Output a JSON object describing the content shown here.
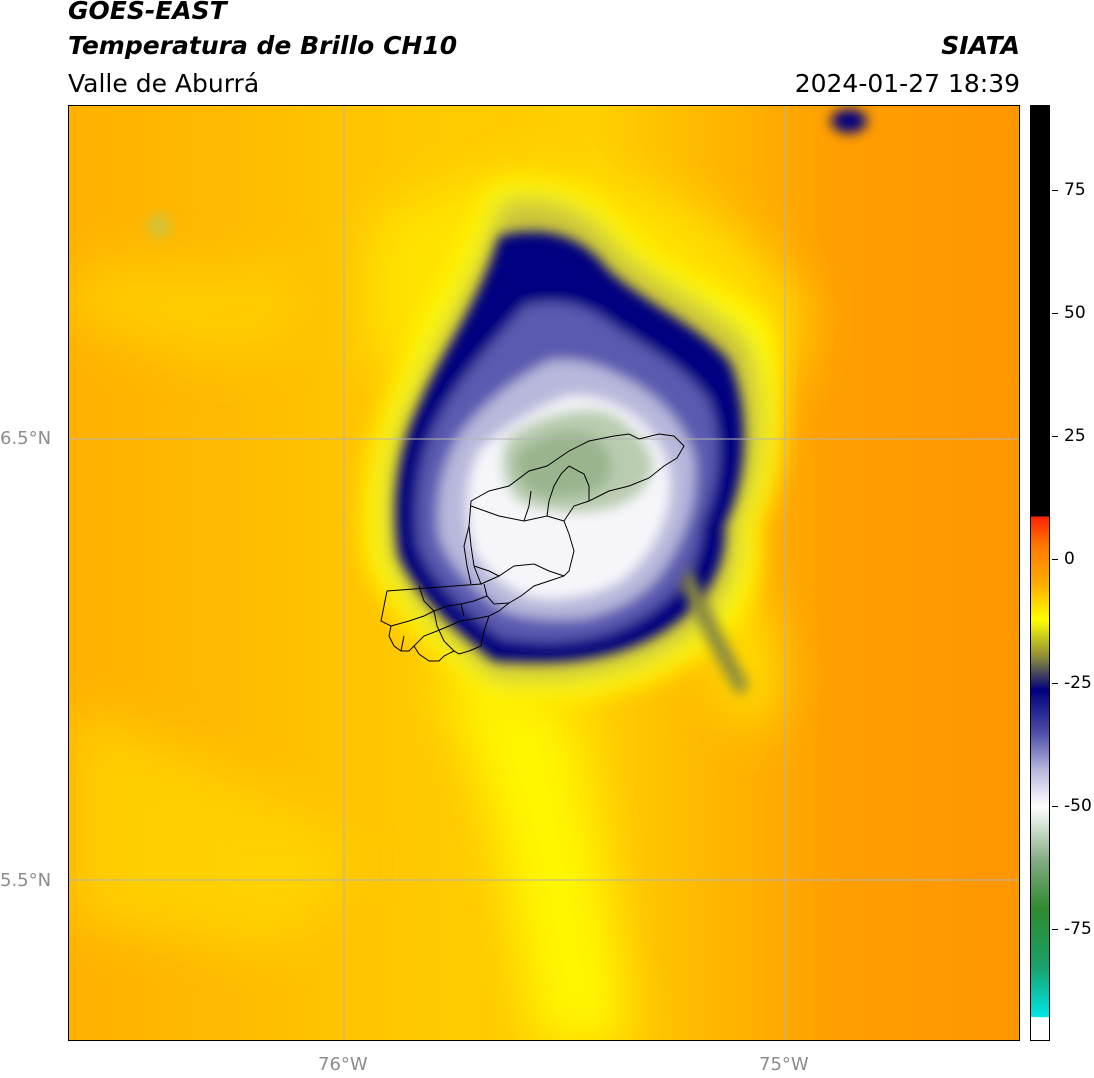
{
  "header": {
    "satellite": "GOES-EAST",
    "product": "Temperatura de Brillo CH10",
    "region": "Valle de Aburrá",
    "agency": "SIATA",
    "datetime": "2024-01-27 18:39"
  },
  "map": {
    "lat_labels": [
      "6.5°N",
      "5.5°N"
    ],
    "lon_labels": [
      "76°W",
      "75°W"
    ],
    "field": "brightness temperature",
    "features": [
      "cold cloud top over Valle de Aburrá",
      "municipal boundaries outline"
    ]
  },
  "colorbar": {
    "tick_labels": [
      "75",
      "50",
      "25",
      "0",
      "-25",
      "-50",
      "-75"
    ],
    "colors": {
      "orange": "#ff9900",
      "yellow": "#ffff00",
      "navy": "#000080",
      "white": "#ffffff",
      "green": "#2e8b2e",
      "cyan": "#00e5e5",
      "red": "#ff2200",
      "black": "#000000"
    }
  }
}
